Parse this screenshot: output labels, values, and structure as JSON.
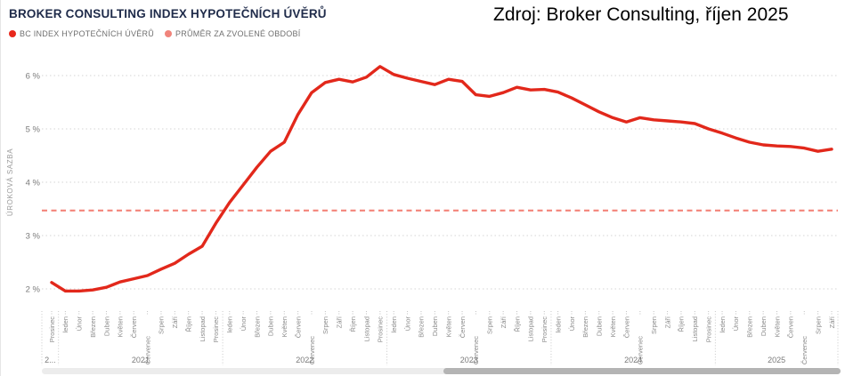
{
  "card": {
    "title": "BROKER CONSULTING INDEX HYPOTEČNÍCH ÚVĚRŮ",
    "source_note": "Zdroj: Broker Consulting, říjen 2025"
  },
  "legend": {
    "items": [
      {
        "label": "BC INDEX HYPOTEČNÍCH ÚVĚRŮ",
        "color": "#e8281c"
      },
      {
        "label": "PRŮMĚR ZA ZVOLENÉ OBDOBÍ",
        "color": "#f0847b"
      }
    ]
  },
  "chart_data": {
    "type": "line",
    "title": "BROKER CONSULTING INDEX HYPOTEČNÍCH ÚVĚRŮ",
    "ylabel": "ÚROKOVÁ SAZBA",
    "xlabel": "",
    "grid": true,
    "legend_position": "top-left",
    "ylim": [
      1.6,
      6.45
    ],
    "y_ticks": [
      {
        "label": "6 %",
        "value": 6
      },
      {
        "label": "5 %",
        "value": 5
      },
      {
        "label": "4 %",
        "value": 4
      },
      {
        "label": "3 %",
        "value": 3
      },
      {
        "label": "2 %",
        "value": 2
      }
    ],
    "categories": [
      "Prosinec",
      "leden",
      "Únor",
      "Březen",
      "Duben",
      "Květen",
      "Červen",
      "Červenec",
      "Srpen",
      "Září",
      "Říjen",
      "Listopad",
      "Prosinec",
      "leden",
      "Únor",
      "Březen",
      "Duben",
      "Květen",
      "Červen",
      "Červenec",
      "Srpen",
      "Září",
      "Říjen",
      "Listopad",
      "Prosinec",
      "leden",
      "Únor",
      "Březen",
      "Duben",
      "Květen",
      "Červen",
      "Červenec",
      "Srpen",
      "Září",
      "Říjen",
      "Listopad",
      "Prosinec",
      "leden",
      "Únor",
      "Březen",
      "Duben",
      "Květen",
      "Červen",
      "Červenec",
      "Srpen",
      "Září",
      "Říjen",
      "Listopad",
      "Prosinec",
      "leden",
      "Únor",
      "Březen",
      "Duben",
      "Květen",
      "Červen",
      "Červenec",
      "Srpen",
      "Září"
    ],
    "year_groups": [
      {
        "label": "2...",
        "count": 1
      },
      {
        "label": "2021",
        "count": 12
      },
      {
        "label": "2022",
        "count": 12
      },
      {
        "label": "2023",
        "count": 12
      },
      {
        "label": "2024",
        "count": 12
      },
      {
        "label": "2025",
        "count": 9
      }
    ],
    "series": [
      {
        "name": "BC INDEX HYPOTEČNÍCH ÚVĚRŮ",
        "color": "#e2281b",
        "values": [
          2.12,
          1.96,
          1.96,
          1.98,
          2.03,
          2.13,
          2.19,
          2.25,
          2.37,
          2.48,
          2.65,
          2.8,
          3.23,
          3.62,
          3.95,
          4.28,
          4.58,
          4.75,
          5.27,
          5.68,
          5.87,
          5.93,
          5.88,
          5.97,
          6.17,
          6.02,
          5.95,
          5.89,
          5.83,
          5.93,
          5.89,
          5.64,
          5.61,
          5.68,
          5.78,
          5.73,
          5.74,
          5.69,
          5.58,
          5.45,
          5.32,
          5.21,
          5.13,
          5.21,
          5.17,
          5.15,
          5.13,
          5.1,
          5.0,
          4.92,
          4.83,
          4.75,
          4.7,
          4.68,
          4.67,
          4.64,
          4.58,
          4.62
        ]
      }
    ],
    "average_line": {
      "name": "PRŮMĚR ZA ZVOLENÉ OBDOBÍ",
      "value": 3.47,
      "color": "#f4847a"
    }
  }
}
